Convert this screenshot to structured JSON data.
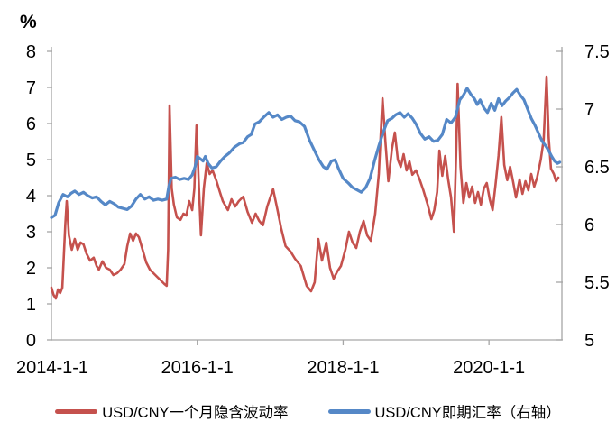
{
  "chart": {
    "unit_label": "%",
    "left_axis": {
      "ticks": [
        8,
        7,
        6,
        5,
        4,
        3,
        2,
        1,
        0
      ],
      "min": 0,
      "max": 8
    },
    "right_axis": {
      "ticks": [
        7.5,
        7,
        6.5,
        6,
        5.5,
        5
      ],
      "min": 5,
      "max": 7.5
    },
    "x_axis": {
      "ticks": [
        {
          "label": "2014-1-1",
          "year": 2014
        },
        {
          "label": "2016-1-1",
          "year": 2016
        },
        {
          "label": "2018-1-1",
          "year": 2018
        },
        {
          "label": "2020-1-1",
          "year": 2020
        }
      ],
      "min_year": 2014,
      "max_year": 2021
    },
    "axis_color": "#a6a6a6",
    "text_color": "#000000"
  },
  "legend": [
    {
      "label": "USD/CNY一个月隐含波动率",
      "color": "#c5514d"
    },
    {
      "label": "USD/CNY即期汇率（右轴）",
      "color": "#5588c7"
    }
  ],
  "chart_data": {
    "type": "line",
    "x_unit": "decimal_year",
    "left_ylim": [
      0,
      8
    ],
    "right_ylim": [
      5,
      7.5
    ],
    "left_axis_unit": "%",
    "grid": false,
    "legend_position": "bottom",
    "series": [
      {
        "name": "USD/CNY一个月隐含波动率",
        "axis": "left",
        "color": "#c5514d",
        "width": 2.6,
        "points": [
          [
            2014.0,
            1.45
          ],
          [
            2014.03,
            1.25
          ],
          [
            2014.06,
            1.15
          ],
          [
            2014.09,
            1.4
          ],
          [
            2014.12,
            1.3
          ],
          [
            2014.15,
            1.45
          ],
          [
            2014.19,
            3.2
          ],
          [
            2014.21,
            3.85
          ],
          [
            2014.24,
            2.9
          ],
          [
            2014.28,
            2.5
          ],
          [
            2014.32,
            2.8
          ],
          [
            2014.36,
            2.5
          ],
          [
            2014.4,
            2.7
          ],
          [
            2014.44,
            2.65
          ],
          [
            2014.48,
            2.4
          ],
          [
            2014.53,
            2.2
          ],
          [
            2014.58,
            2.28
          ],
          [
            2014.62,
            2.05
          ],
          [
            2014.65,
            1.95
          ],
          [
            2014.7,
            2.18
          ],
          [
            2014.75,
            2.0
          ],
          [
            2014.8,
            1.95
          ],
          [
            2014.85,
            1.8
          ],
          [
            2014.9,
            1.85
          ],
          [
            2014.95,
            1.95
          ],
          [
            2015.0,
            2.1
          ],
          [
            2015.04,
            2.6
          ],
          [
            2015.08,
            2.95
          ],
          [
            2015.12,
            2.75
          ],
          [
            2015.16,
            2.95
          ],
          [
            2015.2,
            2.85
          ],
          [
            2015.25,
            2.5
          ],
          [
            2015.3,
            2.15
          ],
          [
            2015.35,
            1.95
          ],
          [
            2015.4,
            1.85
          ],
          [
            2015.45,
            1.75
          ],
          [
            2015.5,
            1.65
          ],
          [
            2015.55,
            1.55
          ],
          [
            2015.58,
            1.5
          ],
          [
            2015.6,
            2.5
          ],
          [
            2015.62,
            6.5
          ],
          [
            2015.65,
            4.2
          ],
          [
            2015.68,
            3.75
          ],
          [
            2015.72,
            3.4
          ],
          [
            2015.77,
            3.33
          ],
          [
            2015.81,
            3.5
          ],
          [
            2015.85,
            3.45
          ],
          [
            2015.89,
            3.85
          ],
          [
            2015.93,
            3.6
          ],
          [
            2015.96,
            4.2
          ],
          [
            2015.99,
            5.95
          ],
          [
            2016.02,
            4.4
          ],
          [
            2016.05,
            2.9
          ],
          [
            2016.09,
            4.2
          ],
          [
            2016.13,
            4.9
          ],
          [
            2016.17,
            4.6
          ],
          [
            2016.21,
            4.7
          ],
          [
            2016.26,
            4.43
          ],
          [
            2016.31,
            4.1
          ],
          [
            2016.35,
            3.85
          ],
          [
            2016.42,
            3.6
          ],
          [
            2016.47,
            3.9
          ],
          [
            2016.52,
            3.7
          ],
          [
            2016.57,
            3.85
          ],
          [
            2016.63,
            3.97
          ],
          [
            2016.69,
            3.55
          ],
          [
            2016.75,
            3.25
          ],
          [
            2016.8,
            3.5
          ],
          [
            2016.85,
            3.3
          ],
          [
            2016.9,
            3.18
          ],
          [
            2016.96,
            3.7
          ],
          [
            2017.04,
            4.18
          ],
          [
            2017.1,
            3.6
          ],
          [
            2017.15,
            3.1
          ],
          [
            2017.21,
            2.6
          ],
          [
            2017.28,
            2.45
          ],
          [
            2017.34,
            2.25
          ],
          [
            2017.42,
            2.05
          ],
          [
            2017.5,
            1.5
          ],
          [
            2017.56,
            1.35
          ],
          [
            2017.61,
            1.6
          ],
          [
            2017.66,
            2.8
          ],
          [
            2017.71,
            2.2
          ],
          [
            2017.77,
            2.7
          ],
          [
            2017.82,
            2.0
          ],
          [
            2017.87,
            1.7
          ],
          [
            2017.92,
            1.9
          ],
          [
            2017.97,
            2.05
          ],
          [
            2018.03,
            2.5
          ],
          [
            2018.08,
            3.0
          ],
          [
            2018.13,
            2.7
          ],
          [
            2018.18,
            2.55
          ],
          [
            2018.23,
            3.0
          ],
          [
            2018.28,
            3.3
          ],
          [
            2018.33,
            2.9
          ],
          [
            2018.38,
            2.75
          ],
          [
            2018.44,
            3.5
          ],
          [
            2018.49,
            4.6
          ],
          [
            2018.54,
            6.7
          ],
          [
            2018.58,
            5.5
          ],
          [
            2018.62,
            4.4
          ],
          [
            2018.67,
            5.3
          ],
          [
            2018.71,
            5.75
          ],
          [
            2018.75,
            5.0
          ],
          [
            2018.79,
            4.8
          ],
          [
            2018.83,
            5.15
          ],
          [
            2018.87,
            4.7
          ],
          [
            2018.91,
            4.95
          ],
          [
            2018.95,
            4.58
          ],
          [
            2019.0,
            4.7
          ],
          [
            2019.05,
            4.45
          ],
          [
            2019.1,
            4.15
          ],
          [
            2019.16,
            3.75
          ],
          [
            2019.21,
            3.35
          ],
          [
            2019.25,
            3.6
          ],
          [
            2019.29,
            4.1
          ],
          [
            2019.32,
            5.25
          ],
          [
            2019.36,
            4.55
          ],
          [
            2019.4,
            5.1
          ],
          [
            2019.44,
            4.45
          ],
          [
            2019.48,
            3.95
          ],
          [
            2019.52,
            3.0
          ],
          [
            2019.55,
            5.2
          ],
          [
            2019.57,
            7.1
          ],
          [
            2019.61,
            4.8
          ],
          [
            2019.65,
            3.8
          ],
          [
            2019.69,
            4.35
          ],
          [
            2019.73,
            3.95
          ],
          [
            2019.77,
            4.25
          ],
          [
            2019.81,
            3.8
          ],
          [
            2019.85,
            4.1
          ],
          [
            2019.89,
            3.75
          ],
          [
            2019.93,
            4.2
          ],
          [
            2019.97,
            4.35
          ],
          [
            2020.01,
            3.9
          ],
          [
            2020.05,
            3.6
          ],
          [
            2020.09,
            4.3
          ],
          [
            2020.13,
            5.1
          ],
          [
            2020.17,
            6.18
          ],
          [
            2020.21,
            4.85
          ],
          [
            2020.25,
            4.43
          ],
          [
            2020.29,
            4.8
          ],
          [
            2020.33,
            4.4
          ],
          [
            2020.37,
            3.95
          ],
          [
            2020.42,
            4.45
          ],
          [
            2020.46,
            4.05
          ],
          [
            2020.5,
            4.4
          ],
          [
            2020.54,
            4.15
          ],
          [
            2020.58,
            4.6
          ],
          [
            2020.62,
            4.25
          ],
          [
            2020.66,
            4.5
          ],
          [
            2020.71,
            5.0
          ],
          [
            2020.75,
            5.55
          ],
          [
            2020.79,
            7.3
          ],
          [
            2020.82,
            5.6
          ],
          [
            2020.85,
            4.75
          ],
          [
            2020.89,
            4.6
          ],
          [
            2020.92,
            4.4
          ],
          [
            2020.95,
            4.5
          ]
        ]
      },
      {
        "name": "USD/CNY即期汇率（右轴）",
        "axis": "right",
        "color": "#5588c7",
        "width": 3.2,
        "points": [
          [
            2014.0,
            6.06
          ],
          [
            2014.05,
            6.08
          ],
          [
            2014.1,
            6.19
          ],
          [
            2014.16,
            6.26
          ],
          [
            2014.22,
            6.24
          ],
          [
            2014.27,
            6.27
          ],
          [
            2014.32,
            6.29
          ],
          [
            2014.38,
            6.26
          ],
          [
            2014.44,
            6.28
          ],
          [
            2014.5,
            6.25
          ],
          [
            2014.56,
            6.23
          ],
          [
            2014.62,
            6.24
          ],
          [
            2014.68,
            6.2
          ],
          [
            2014.74,
            6.17
          ],
          [
            2014.8,
            6.2
          ],
          [
            2014.86,
            6.18
          ],
          [
            2014.92,
            6.15
          ],
          [
            2014.98,
            6.14
          ],
          [
            2015.04,
            6.13
          ],
          [
            2015.1,
            6.16
          ],
          [
            2015.16,
            6.22
          ],
          [
            2015.22,
            6.26
          ],
          [
            2015.28,
            6.22
          ],
          [
            2015.34,
            6.24
          ],
          [
            2015.4,
            6.21
          ],
          [
            2015.46,
            6.22
          ],
          [
            2015.52,
            6.21
          ],
          [
            2015.58,
            6.22
          ],
          [
            2015.61,
            6.33
          ],
          [
            2015.64,
            6.4
          ],
          [
            2015.7,
            6.41
          ],
          [
            2015.76,
            6.39
          ],
          [
            2015.82,
            6.4
          ],
          [
            2015.88,
            6.39
          ],
          [
            2015.93,
            6.43
          ],
          [
            2015.97,
            6.5
          ],
          [
            2016.0,
            6.59
          ],
          [
            2016.04,
            6.57
          ],
          [
            2016.08,
            6.55
          ],
          [
            2016.11,
            6.59
          ],
          [
            2016.15,
            6.53
          ],
          [
            2016.2,
            6.49
          ],
          [
            2016.26,
            6.5
          ],
          [
            2016.32,
            6.55
          ],
          [
            2016.38,
            6.59
          ],
          [
            2016.44,
            6.62
          ],
          [
            2016.51,
            6.67
          ],
          [
            2016.58,
            6.7
          ],
          [
            2016.63,
            6.71
          ],
          [
            2016.69,
            6.76
          ],
          [
            2016.74,
            6.78
          ],
          [
            2016.79,
            6.87
          ],
          [
            2016.85,
            6.89
          ],
          [
            2016.91,
            6.93
          ],
          [
            2016.98,
            6.97
          ],
          [
            2017.04,
            6.93
          ],
          [
            2017.1,
            6.95
          ],
          [
            2017.16,
            6.91
          ],
          [
            2017.22,
            6.93
          ],
          [
            2017.28,
            6.94
          ],
          [
            2017.34,
            6.9
          ],
          [
            2017.4,
            6.89
          ],
          [
            2017.47,
            6.85
          ],
          [
            2017.54,
            6.73
          ],
          [
            2017.6,
            6.65
          ],
          [
            2017.67,
            6.56
          ],
          [
            2017.73,
            6.5
          ],
          [
            2017.78,
            6.48
          ],
          [
            2017.84,
            6.55
          ],
          [
            2017.89,
            6.56
          ],
          [
            2017.94,
            6.48
          ],
          [
            2018.0,
            6.4
          ],
          [
            2018.07,
            6.36
          ],
          [
            2018.13,
            6.32
          ],
          [
            2018.19,
            6.3
          ],
          [
            2018.25,
            6.28
          ],
          [
            2018.31,
            6.32
          ],
          [
            2018.37,
            6.4
          ],
          [
            2018.43,
            6.55
          ],
          [
            2018.49,
            6.68
          ],
          [
            2018.55,
            6.8
          ],
          [
            2018.61,
            6.9
          ],
          [
            2018.67,
            6.92
          ],
          [
            2018.72,
            6.95
          ],
          [
            2018.78,
            6.97
          ],
          [
            2018.84,
            6.93
          ],
          [
            2018.89,
            6.96
          ],
          [
            2018.95,
            6.92
          ],
          [
            2019.0,
            6.87
          ],
          [
            2019.06,
            6.79
          ],
          [
            2019.12,
            6.74
          ],
          [
            2019.18,
            6.76
          ],
          [
            2019.24,
            6.72
          ],
          [
            2019.3,
            6.73
          ],
          [
            2019.36,
            6.78
          ],
          [
            2019.42,
            6.91
          ],
          [
            2019.48,
            6.88
          ],
          [
            2019.54,
            6.93
          ],
          [
            2019.6,
            7.08
          ],
          [
            2019.65,
            7.12
          ],
          [
            2019.7,
            7.18
          ],
          [
            2019.75,
            7.13
          ],
          [
            2019.8,
            7.09
          ],
          [
            2019.84,
            7.04
          ],
          [
            2019.88,
            7.08
          ],
          [
            2019.93,
            7.01
          ],
          [
            2019.98,
            6.97
          ],
          [
            2020.03,
            7.05
          ],
          [
            2020.08,
            6.99
          ],
          [
            2020.13,
            7.09
          ],
          [
            2020.18,
            7.03
          ],
          [
            2020.23,
            7.07
          ],
          [
            2020.28,
            7.1
          ],
          [
            2020.33,
            7.14
          ],
          [
            2020.38,
            7.17
          ],
          [
            2020.43,
            7.12
          ],
          [
            2020.48,
            7.08
          ],
          [
            2020.53,
            7.0
          ],
          [
            2020.58,
            6.92
          ],
          [
            2020.63,
            6.86
          ],
          [
            2020.68,
            6.79
          ],
          [
            2020.73,
            6.72
          ],
          [
            2020.78,
            6.68
          ],
          [
            2020.82,
            6.64
          ],
          [
            2020.86,
            6.59
          ],
          [
            2020.9,
            6.55
          ],
          [
            2020.94,
            6.53
          ],
          [
            2020.97,
            6.54
          ]
        ]
      }
    ]
  }
}
